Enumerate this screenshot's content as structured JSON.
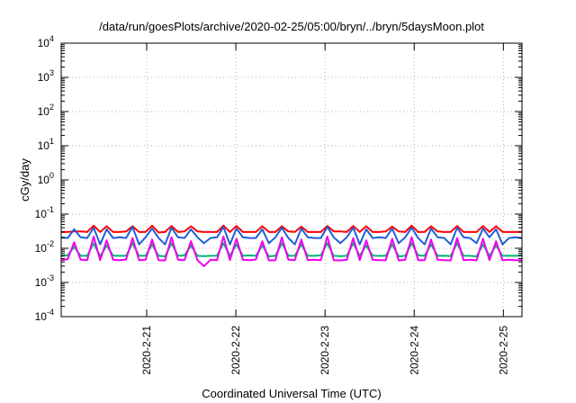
{
  "chart_data": {
    "type": "line",
    "title": "/data/run/goesPlots/archive/2020-02-25/05:00/bryn/../bryn/5daysMoon.plot",
    "xlabel": "Coordinated Universal Time (UTC)",
    "ylabel": "cGy/day",
    "y_scale": "log",
    "ylim": [
      0.0001,
      10000
    ],
    "y_ticks": [
      {
        "base": "10",
        "exp": "-4",
        "value": 0.0001
      },
      {
        "base": "10",
        "exp": "-3",
        "value": 0.001
      },
      {
        "base": "10",
        "exp": "-2",
        "value": 0.01
      },
      {
        "base": "10",
        "exp": "-1",
        "value": 0.1
      },
      {
        "base": "10",
        "exp": "0",
        "value": 1
      },
      {
        "base": "10",
        "exp": "1",
        "value": 10
      },
      {
        "base": "10",
        "exp": "2",
        "value": 100
      },
      {
        "base": "10",
        "exp": "3",
        "value": 1000
      },
      {
        "base": "10",
        "exp": "4",
        "value": 10000
      }
    ],
    "xlim": [
      "2020-02-20 01:00",
      "2020-02-25 05:00"
    ],
    "x_ticks": [
      "2020-2-21",
      "2020-2-22",
      "2020-2-23",
      "2020-2-24",
      "2020-2-25"
    ],
    "grid": true,
    "legend": "none",
    "series": [
      {
        "color": "#ff0000",
        "values": [
          0.03,
          0.03,
          0.031,
          0.031,
          0.03,
          0.046,
          0.03,
          0.044,
          0.03,
          0.03,
          0.031,
          0.044,
          0.03,
          0.03,
          0.046,
          0.029,
          0.03,
          0.045,
          0.03,
          0.031,
          0.044,
          0.031,
          0.03,
          0.03,
          0.03,
          0.046,
          0.03,
          0.045,
          0.03,
          0.03,
          0.03,
          0.044,
          0.03,
          0.03,
          0.044,
          0.031,
          0.03,
          0.043,
          0.03,
          0.03,
          0.03,
          0.045,
          0.031,
          0.031,
          0.03,
          0.045,
          0.03,
          0.044,
          0.03,
          0.03,
          0.031,
          0.043,
          0.031,
          0.03,
          0.046,
          0.03,
          0.03,
          0.044,
          0.031,
          0.03,
          0.03,
          0.045,
          0.03,
          0.03,
          0.03,
          0.045,
          0.03,
          0.044,
          0.03,
          0.03,
          0.03,
          0.03
        ]
      },
      {
        "color": "#1e5fd6",
        "values": [
          0.021,
          0.02,
          0.036,
          0.021,
          0.02,
          0.04,
          0.013,
          0.036,
          0.02,
          0.021,
          0.02,
          0.042,
          0.013,
          0.021,
          0.038,
          0.02,
          0.013,
          0.04,
          0.021,
          0.02,
          0.036,
          0.021,
          0.014,
          0.02,
          0.021,
          0.042,
          0.013,
          0.038,
          0.021,
          0.02,
          0.02,
          0.036,
          0.014,
          0.021,
          0.04,
          0.02,
          0.013,
          0.038,
          0.021,
          0.02,
          0.02,
          0.042,
          0.021,
          0.014,
          0.021,
          0.04,
          0.013,
          0.036,
          0.02,
          0.021,
          0.02,
          0.038,
          0.014,
          0.021,
          0.04,
          0.02,
          0.013,
          0.038,
          0.021,
          0.02,
          0.013,
          0.04,
          0.021,
          0.02,
          0.014,
          0.038,
          0.021,
          0.036,
          0.013,
          0.02,
          0.021,
          0.02
        ]
      },
      {
        "color": "#00b377",
        "values": [
          0.006,
          0.0062,
          0.011,
          0.006,
          0.006,
          0.014,
          0.0058,
          0.012,
          0.0061,
          0.006,
          0.006,
          0.014,
          0.006,
          0.0061,
          0.013,
          0.006,
          0.0058,
          0.014,
          0.006,
          0.0062,
          0.012,
          0.006,
          0.0059,
          0.006,
          0.0061,
          0.014,
          0.006,
          0.013,
          0.006,
          0.0062,
          0.006,
          0.012,
          0.0058,
          0.006,
          0.014,
          0.0061,
          0.006,
          0.013,
          0.006,
          0.006,
          0.0062,
          0.014,
          0.006,
          0.0059,
          0.006,
          0.014,
          0.006,
          0.012,
          0.0061,
          0.006,
          0.006,
          0.013,
          0.0058,
          0.006,
          0.014,
          0.0062,
          0.006,
          0.013,
          0.006,
          0.0061,
          0.0059,
          0.014,
          0.006,
          0.006,
          0.0058,
          0.013,
          0.006,
          0.012,
          0.006,
          0.0061,
          0.006,
          0.0062
        ]
      },
      {
        "color": "#ee00ee",
        "values": [
          0.0045,
          0.0048,
          0.015,
          0.0046,
          0.0045,
          0.022,
          0.0045,
          0.017,
          0.0046,
          0.0045,
          0.0047,
          0.02,
          0.0045,
          0.0046,
          0.018,
          0.0045,
          0.0044,
          0.021,
          0.0046,
          0.0045,
          0.016,
          0.0045,
          0.003,
          0.0046,
          0.0045,
          0.022,
          0.0045,
          0.019,
          0.0046,
          0.0045,
          0.0047,
          0.016,
          0.0044,
          0.0045,
          0.021,
          0.0046,
          0.0045,
          0.018,
          0.0045,
          0.0046,
          0.0045,
          0.022,
          0.0045,
          0.0044,
          0.0046,
          0.02,
          0.0045,
          0.017,
          0.0046,
          0.0045,
          0.0045,
          0.019,
          0.0044,
          0.0046,
          0.021,
          0.0045,
          0.0045,
          0.018,
          0.0046,
          0.0045,
          0.0044,
          0.02,
          0.0045,
          0.0046,
          0.0044,
          0.019,
          0.0045,
          0.016,
          0.0045,
          0.0046,
          0.0045,
          0.0045
        ]
      }
    ]
  }
}
